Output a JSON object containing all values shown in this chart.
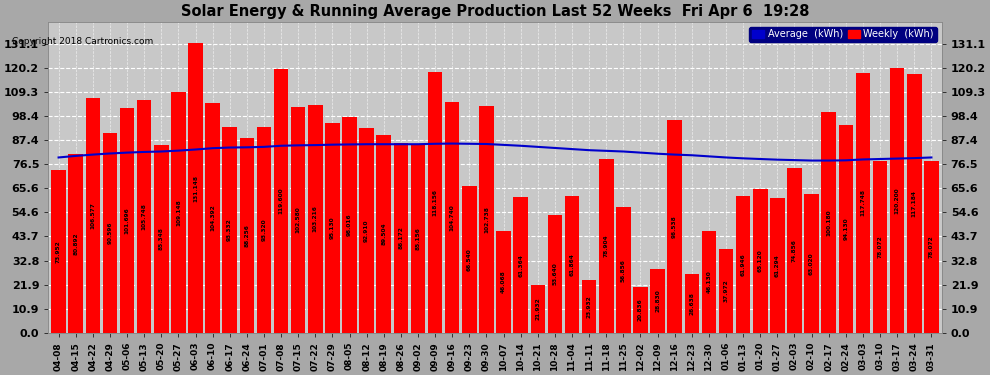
{
  "title": "Solar Energy & Running Average Production Last 52 Weeks  Fri Apr 6  19:28",
  "copyright": "Copyright 2018 Cartronics.com",
  "bar_color": "#ff0000",
  "line_color": "#0000cc",
  "yticks": [
    0.0,
    10.9,
    21.9,
    32.8,
    43.7,
    54.6,
    65.6,
    76.5,
    87.4,
    98.4,
    109.3,
    120.2,
    131.1
  ],
  "legend_avg_color": "#0000cc",
  "legend_weekly_color": "#ff0000",
  "categories": [
    "04-08",
    "04-15",
    "04-22",
    "04-29",
    "05-06",
    "05-13",
    "05-20",
    "05-27",
    "06-03",
    "06-10",
    "06-17",
    "06-24",
    "07-01",
    "07-08",
    "07-15",
    "07-22",
    "07-29",
    "08-05",
    "08-12",
    "08-19",
    "08-26",
    "09-02",
    "09-09",
    "09-16",
    "09-23",
    "09-30",
    "10-07",
    "10-14",
    "10-21",
    "10-28",
    "11-04",
    "11-11",
    "11-18",
    "11-25",
    "12-02",
    "12-09",
    "12-16",
    "12-23",
    "12-30",
    "01-06",
    "01-13",
    "01-20",
    "01-27",
    "02-03",
    "02-10",
    "02-17",
    "02-24",
    "03-03",
    "03-10",
    "03-17",
    "03-24",
    "03-31"
  ],
  "weekly_values": [
    73.952,
    80.892,
    106.577,
    90.596,
    101.696,
    105.748,
    85.348,
    109.148,
    131.148,
    104.392,
    93.332,
    88.256,
    93.32,
    119.6,
    102.58,
    103.216,
    95.13,
    98.016,
    92.91,
    89.504,
    86.172,
    85.156,
    118.156,
    104.74,
    66.54,
    102.738,
    46.068,
    61.364,
    21.932,
    53.64,
    61.864,
    23.932,
    78.904,
    56.856,
    20.836,
    28.83,
    96.538,
    26.638,
    46.13,
    37.972,
    61.946,
    65.12,
    61.294,
    74.856,
    63.02,
    100.18,
    94.13,
    117.748,
    78.072,
    120.2,
    117.184,
    78.072
  ],
  "avg_values": [
    79.5,
    80.2,
    80.8,
    81.3,
    81.7,
    82.0,
    82.2,
    82.6,
    83.1,
    83.7,
    84.0,
    84.1,
    84.3,
    84.8,
    85.0,
    85.1,
    85.3,
    85.4,
    85.5,
    85.5,
    85.5,
    85.5,
    85.7,
    85.8,
    85.7,
    85.6,
    85.2,
    84.8,
    84.3,
    83.8,
    83.3,
    82.8,
    82.5,
    82.2,
    81.7,
    81.2,
    80.8,
    80.5,
    80.0,
    79.5,
    79.1,
    78.8,
    78.5,
    78.3,
    78.1,
    78.1,
    78.2,
    78.6,
    78.8,
    79.0,
    79.2,
    79.5
  ]
}
